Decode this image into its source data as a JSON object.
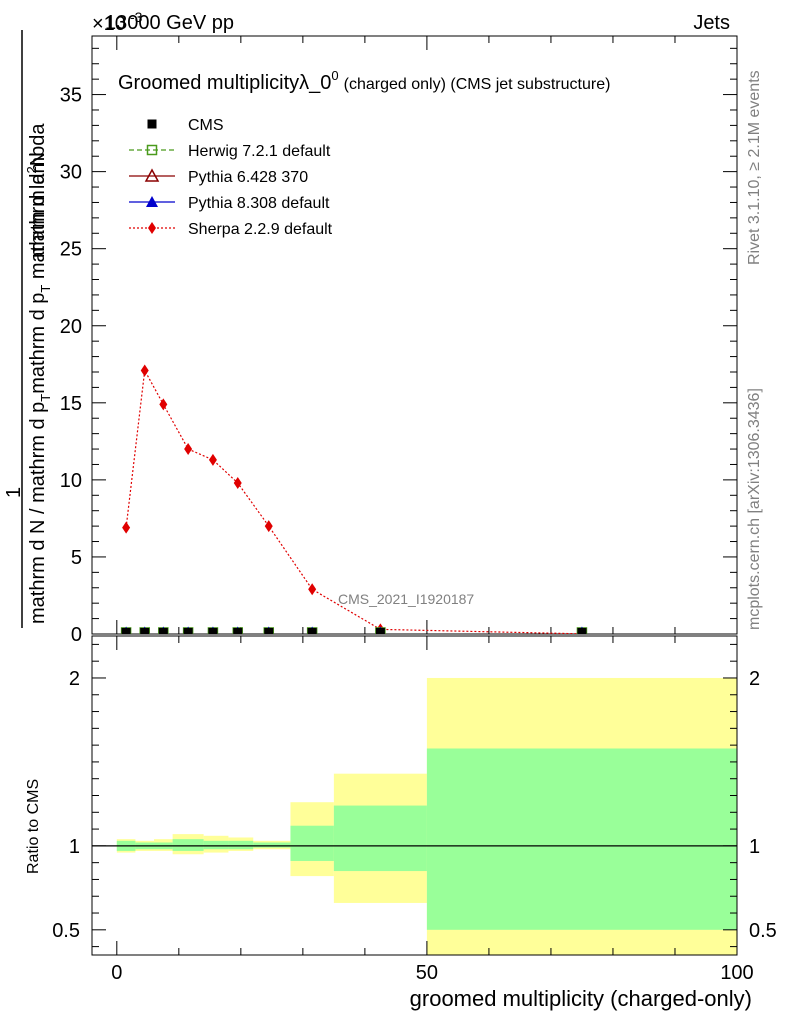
{
  "header": {
    "left": "13000 GeV pp",
    "right": "Jets",
    "exponent": "×10",
    "exponent_power": "-3"
  },
  "side_labels": {
    "rivet": "Rivet 3.1.10, ≥ 2.1M events",
    "mcplots": "mcplots.cern.ch [arXiv:1306.3436]"
  },
  "chart_data": [
    {
      "type": "line",
      "title": "Groomed multiplicityλ_0",
      "title_sup": "0",
      "title_suffix": "(charged only) (CMS jet substructure)",
      "ylabel_numerator_main": "mathrm d",
      "ylabel_numerator_sup": "2",
      "ylabel_numerator_tail": "N",
      "ylabel_prefix": "1",
      "ylabel_den_a": "mathrm d N / mathrm d p",
      "ylabel_den_a_sub": "T",
      "ylabel_num_a": "mathrm d p",
      "ylabel_num_a_sub": "T",
      "ylabel_num_tail": " mathrm d lambda",
      "ylabel_den_tail": " mathrm d",
      "xlim": [
        -4,
        100
      ],
      "ylim": [
        0,
        0.0388
      ],
      "y_ticks": [
        0,
        5,
        10,
        15,
        20,
        25,
        30,
        35
      ],
      "watermark": "CMS_2021_I1920187",
      "legend": [
        {
          "name": "CMS",
          "color": "#000000",
          "marker": "square-filled",
          "line": "none"
        },
        {
          "name": "Herwig 7.2.1 default",
          "color": "#4a9a1c",
          "marker": "square-open",
          "line": "dashed"
        },
        {
          "name": "Pythia 6.428 370",
          "color": "#8b0000",
          "marker": "triangle-open",
          "line": "solid"
        },
        {
          "name": "Pythia 8.308 default",
          "color": "#0000cc",
          "marker": "triangle-filled",
          "line": "solid"
        },
        {
          "name": "Sherpa 2.2.9 default",
          "color": "#e00000",
          "marker": "diamond-filled",
          "line": "dotted"
        }
      ],
      "x": [
        1.5,
        4.5,
        7.5,
        11.5,
        15.5,
        19.5,
        24.5,
        31.5,
        42.5,
        75
      ],
      "series": [
        {
          "name": "CMS",
          "values": [
            0.0001,
            0.0001,
            0.0001,
            0.0001,
            0.0001,
            0.0001,
            0.0001,
            0.0001,
            0.0001,
            0.0001
          ]
        },
        {
          "name": "Sherpa 2.2.9 default",
          "values": [
            0.0069,
            0.0171,
            0.0149,
            0.012,
            0.0113,
            0.0098,
            0.007,
            0.0029,
            0.0003,
            1e-05
          ]
        }
      ]
    },
    {
      "type": "area",
      "ylabel": "Ratio to CMS",
      "xlabel": "groomed multiplicity (charged-only)",
      "xlim": [
        -4,
        100
      ],
      "ylim": [
        0.35,
        2.25
      ],
      "x_ticks": [
        0,
        50,
        100
      ],
      "y_ticks": [
        0.5,
        1,
        2
      ],
      "bands": [
        {
          "x0": 0,
          "x1": 3,
          "inner": [
            0.97,
            1.03
          ],
          "outer": [
            0.96,
            1.04
          ]
        },
        {
          "x0": 3,
          "x1": 6,
          "inner": [
            0.98,
            1.02
          ],
          "outer": [
            0.97,
            1.03
          ]
        },
        {
          "x0": 6,
          "x1": 9,
          "inner": [
            0.98,
            1.02
          ],
          "outer": [
            0.97,
            1.04
          ]
        },
        {
          "x0": 9,
          "x1": 14,
          "inner": [
            0.97,
            1.04
          ],
          "outer": [
            0.95,
            1.07
          ]
        },
        {
          "x0": 14,
          "x1": 18,
          "inner": [
            0.98,
            1.03
          ],
          "outer": [
            0.96,
            1.06
          ]
        },
        {
          "x0": 18,
          "x1": 22,
          "inner": [
            0.98,
            1.03
          ],
          "outer": [
            0.97,
            1.05
          ]
        },
        {
          "x0": 22,
          "x1": 28,
          "inner": [
            0.99,
            1.02
          ],
          "outer": [
            0.98,
            1.03
          ]
        },
        {
          "x0": 28,
          "x1": 35,
          "inner": [
            0.91,
            1.12
          ],
          "outer": [
            0.82,
            1.26
          ]
        },
        {
          "x0": 35,
          "x1": 50,
          "inner": [
            0.85,
            1.24
          ],
          "outer": [
            0.66,
            1.43
          ]
        },
        {
          "x0": 50,
          "x1": 100,
          "inner": [
            0.5,
            1.58
          ],
          "outer": [
            0.35,
            2.0
          ]
        }
      ],
      "reference": 1
    }
  ]
}
